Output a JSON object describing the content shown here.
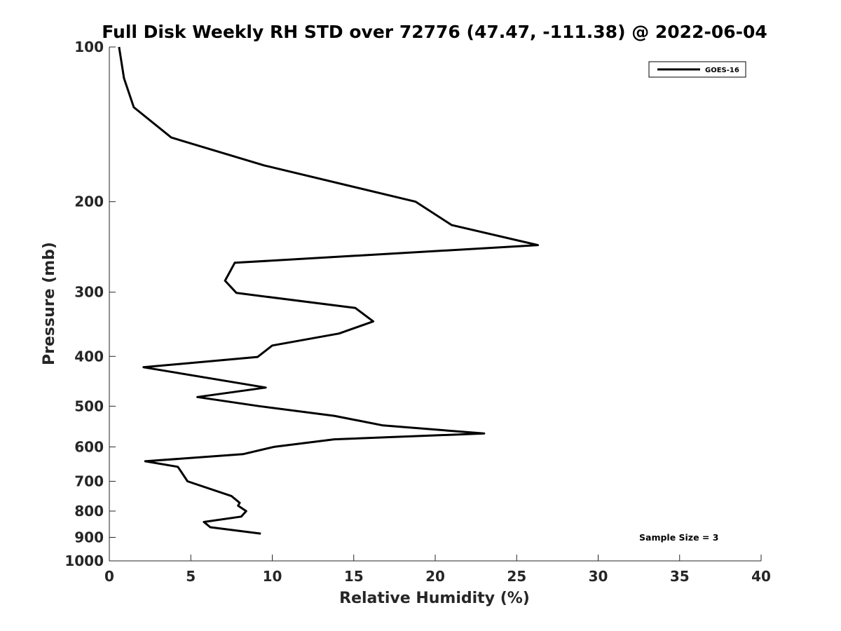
{
  "chart_data": {
    "type": "line",
    "title": "Full Disk Weekly RH STD over 72776 (47.47, -111.38) @ 2022-06-04",
    "xlabel": "Relative Humidity (%)",
    "ylabel": "Pressure (mb)",
    "xlim": [
      0,
      40
    ],
    "ylim": [
      100,
      1000
    ],
    "y_scale": "log",
    "y_reversed": true,
    "grid": false,
    "legend_position": "top-right",
    "xticks": [
      0,
      5,
      10,
      15,
      20,
      25,
      30,
      35,
      40
    ],
    "xtick_labels": [
      "0",
      "5",
      "10",
      "15",
      "20",
      "25",
      "30",
      "35",
      "40"
    ],
    "yticks": [
      100,
      200,
      300,
      400,
      500,
      600,
      700,
      800,
      900,
      1000
    ],
    "ytick_labels": [
      "100",
      "200",
      "300",
      "400",
      "500",
      "600",
      "700",
      "800",
      "900",
      "1000"
    ],
    "series": [
      {
        "name": "GOES-16",
        "color": "#000000",
        "x": [
          0.6,
          0.9,
          1.5,
          3.8,
          9.5,
          18.8,
          21.0,
          26.3,
          7.7,
          7.1,
          7.8,
          15.1,
          16.2,
          14.1,
          10.0,
          9.1,
          2.1,
          9.6,
          5.4,
          9.2,
          13.8,
          16.8,
          23.0,
          13.8,
          10.1,
          8.2,
          2.2,
          4.2,
          4.4,
          4.8,
          7.5,
          8.0,
          7.9,
          8.4,
          8.1,
          5.8,
          6.2,
          9.3
        ],
        "y": [
          100,
          115,
          131,
          150,
          170,
          200,
          222,
          243,
          263,
          285,
          301,
          322,
          342,
          361,
          381,
          401,
          420,
          460,
          480,
          500,
          522,
          545,
          565,
          580,
          600,
          620,
          640,
          656,
          670,
          700,
          748,
          771,
          781,
          800,
          820,
          840,
          860,
          885
        ]
      }
    ],
    "annotations": [
      {
        "text": "Sample Size = 3",
        "position": "bottom-right"
      }
    ]
  }
}
